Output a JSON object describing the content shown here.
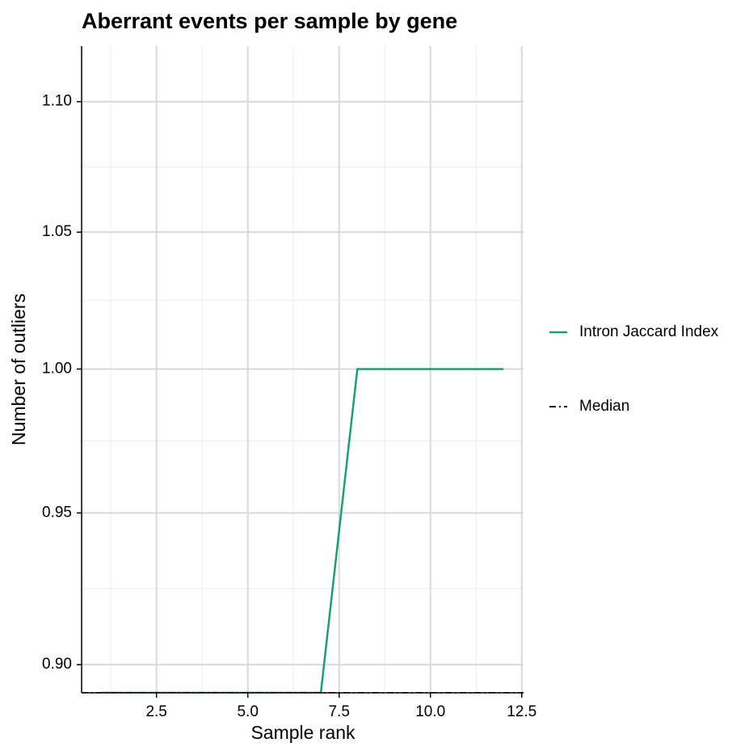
{
  "chart_data": {
    "type": "line",
    "title": "Aberrant events per sample by gene",
    "x_label": "Sample rank",
    "y_label": "Number of outliers",
    "x": [
      1,
      2,
      3,
      4,
      5,
      6,
      7,
      8,
      9,
      10,
      11,
      12
    ],
    "series": [
      {
        "name": "Intron Jaccard Index",
        "color": "#1b9e77",
        "values": [
          0,
          0,
          0,
          0,
          0,
          0,
          0,
          1,
          1,
          1,
          1,
          1
        ]
      }
    ],
    "median": {
      "name": "Median",
      "value": 0,
      "color": "#000000"
    },
    "xlim": [
      0.45,
      12.55
    ],
    "xticks": [
      {
        "value": 2.5,
        "label": "2.5"
      },
      {
        "value": 5,
        "label": "5.0"
      },
      {
        "value": 7.5,
        "label": "7.5"
      },
      {
        "value": 10,
        "label": "10.0"
      },
      {
        "value": 12.5,
        "label": "12.5"
      }
    ],
    "xminor_ticks": [
      1.25,
      3.75,
      6.25,
      8.75,
      11.25
    ],
    "ylim": [
      0.891,
      1.122
    ],
    "log_y": true,
    "yticks": [
      {
        "value": 0.9,
        "label": "0.90"
      },
      {
        "value": 0.95,
        "label": "0.95"
      },
      {
        "value": 1,
        "label": "1.00"
      },
      {
        "value": 1.05,
        "label": "1.05"
      },
      {
        "value": 1.1,
        "label": "1.10"
      }
    ],
    "yminor_ticks": [
      0.9247,
      0.9747,
      1.0247,
      1.0747
    ],
    "grid": true,
    "legend": "right"
  }
}
